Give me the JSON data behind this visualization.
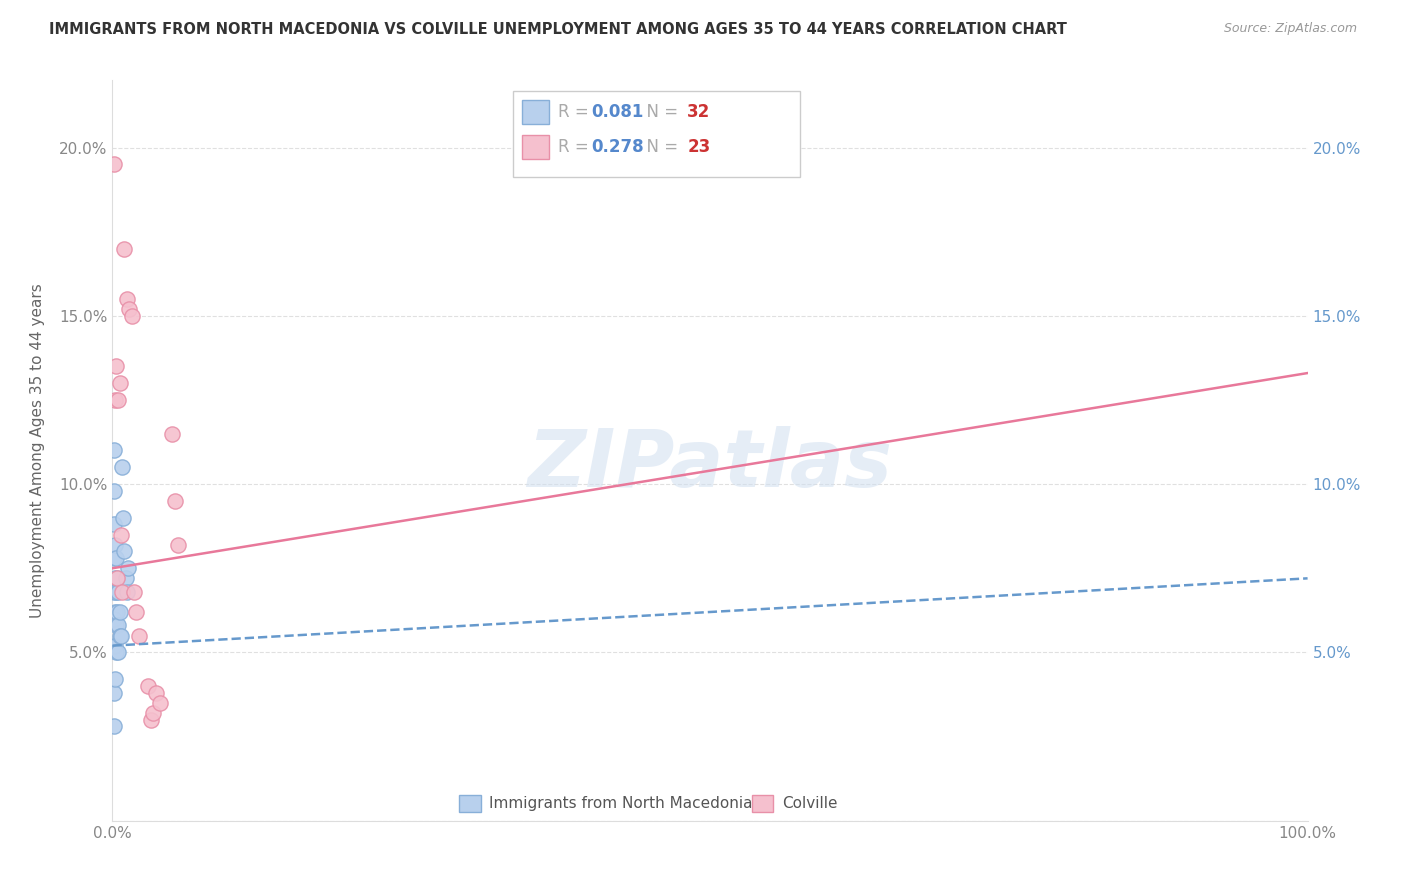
{
  "title": "IMMIGRANTS FROM NORTH MACEDONIA VS COLVILLE UNEMPLOYMENT AMONG AGES 35 TO 44 YEARS CORRELATION CHART",
  "source": "Source: ZipAtlas.com",
  "ylabel": "Unemployment Among Ages 35 to 44 years",
  "background_color": "#ffffff",
  "watermark": "ZIPatlas",
  "xlim": [
    0,
    1.0
  ],
  "ylim": [
    0,
    0.22
  ],
  "yticks": [
    0.0,
    0.05,
    0.1,
    0.15,
    0.2
  ],
  "ytick_labels": [
    "",
    "5.0%",
    "10.0%",
    "15.0%",
    "20.0%"
  ],
  "blue_scatter": {
    "label": "Immigrants from North Macedonia",
    "R": "0.081",
    "N": "32",
    "color": "#b8d0ed",
    "edge_color": "#88afd8",
    "line_color": "#6699cc",
    "line_style": "--",
    "x": [
      0.001,
      0.001,
      0.001,
      0.001,
      0.001,
      0.001,
      0.001,
      0.001,
      0.001,
      0.002,
      0.002,
      0.002,
      0.002,
      0.002,
      0.003,
      0.003,
      0.003,
      0.003,
      0.004,
      0.004,
      0.005,
      0.005,
      0.005,
      0.006,
      0.006,
      0.007,
      0.008,
      0.009,
      0.01,
      0.011,
      0.012,
      0.013
    ],
    "y": [
      0.11,
      0.098,
      0.088,
      0.078,
      0.068,
      0.06,
      0.052,
      0.038,
      0.028,
      0.082,
      0.072,
      0.062,
      0.052,
      0.042,
      0.078,
      0.068,
      0.058,
      0.05,
      0.072,
      0.062,
      0.068,
      0.058,
      0.05,
      0.062,
      0.055,
      0.055,
      0.105,
      0.09,
      0.08,
      0.072,
      0.068,
      0.075
    ],
    "trendline_x": [
      0.0,
      1.0
    ],
    "trendline_y": [
      0.052,
      0.072
    ]
  },
  "pink_scatter": {
    "label": "Colville",
    "R": "0.278",
    "N": "23",
    "color": "#f5c0ce",
    "edge_color": "#e890a8",
    "line_color": "#e8789a",
    "line_style": "-",
    "x": [
      0.001,
      0.002,
      0.003,
      0.004,
      0.005,
      0.006,
      0.007,
      0.008,
      0.01,
      0.012,
      0.014,
      0.016,
      0.018,
      0.02,
      0.022,
      0.03,
      0.032,
      0.034,
      0.036,
      0.04,
      0.05,
      0.052,
      0.055
    ],
    "y": [
      0.195,
      0.125,
      0.135,
      0.072,
      0.125,
      0.13,
      0.085,
      0.068,
      0.17,
      0.155,
      0.152,
      0.15,
      0.068,
      0.062,
      0.055,
      0.04,
      0.03,
      0.032,
      0.038,
      0.035,
      0.115,
      0.095,
      0.082
    ],
    "trendline_x": [
      0.0,
      1.0
    ],
    "trendline_y": [
      0.075,
      0.133
    ]
  }
}
